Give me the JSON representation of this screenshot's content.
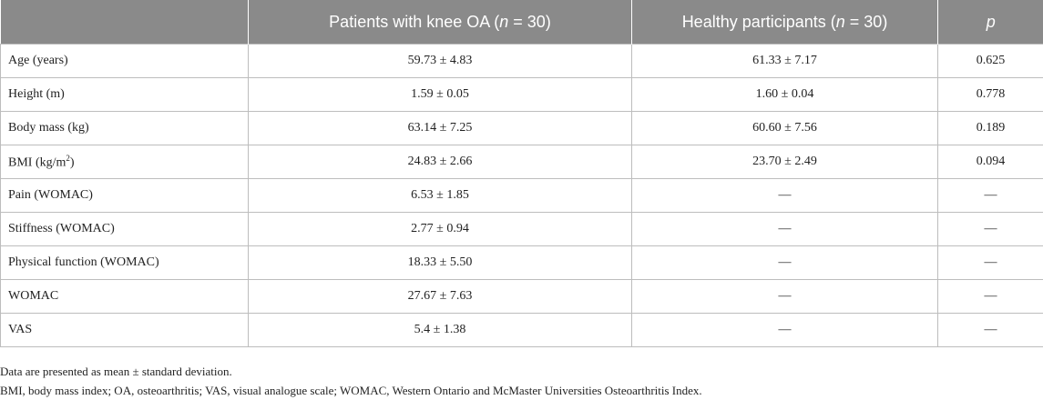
{
  "header": {
    "col_variable": "",
    "col_oa_prefix": "Patients with knee OA (",
    "col_oa_n": "n",
    "col_oa_suffix": " = 30)",
    "col_healthy_prefix": "Healthy participants (",
    "col_healthy_n": "n",
    "col_healthy_suffix": " = 30)",
    "col_p": "p"
  },
  "rows": [
    {
      "label": "Age (years)",
      "oa": "59.73 ± 4.83",
      "healthy": "61.33 ± 7.17",
      "p": "0.625"
    },
    {
      "label": "Height (m)",
      "oa": "1.59 ± 0.05",
      "healthy": "1.60 ± 0.04",
      "p": "0.778"
    },
    {
      "label": "Body mass (kg)",
      "oa": "63.14 ± 7.25",
      "healthy": "60.60 ± 7.56",
      "p": "0.189"
    },
    {
      "label_prefix": "BMI (kg/m",
      "label_sup": "2",
      "label_suffix": ")",
      "oa": "24.83 ± 2.66",
      "healthy": "23.70 ± 2.49",
      "p": "0.094"
    },
    {
      "label": "Pain (WOMAC)",
      "oa": "6.53 ± 1.85",
      "healthy": "—",
      "p": "—"
    },
    {
      "label": "Stiffness (WOMAC)",
      "oa": "2.77 ± 0.94",
      "healthy": "—",
      "p": "—"
    },
    {
      "label": "Physical function (WOMAC)",
      "oa": "18.33 ± 5.50",
      "healthy": "—",
      "p": "—"
    },
    {
      "label": "WOMAC",
      "oa": "27.67 ± 7.63",
      "healthy": "—",
      "p": "—"
    },
    {
      "label": "VAS",
      "oa": "5.4 ± 1.38",
      "healthy": "—",
      "p": "—"
    }
  ],
  "footnotes": [
    "Data are presented as mean ± standard deviation.",
    "BMI, body mass index; OA, osteoarthritis; VAS, visual analogue scale; WOMAC, Western Ontario and McMaster Universities Osteoarthritis Index."
  ]
}
